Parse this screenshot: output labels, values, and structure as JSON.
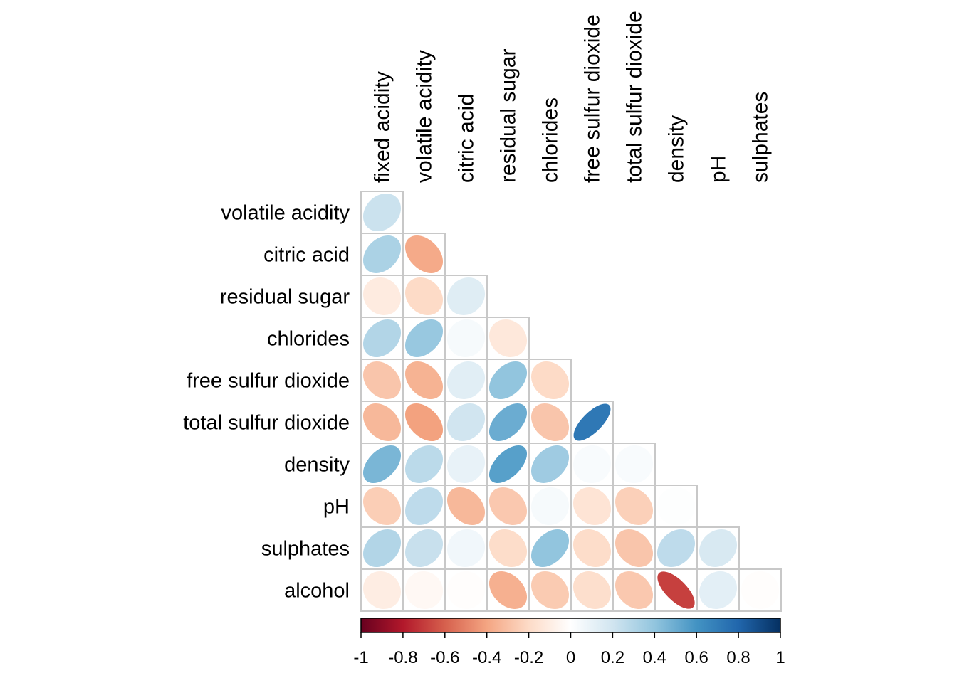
{
  "chart_data": {
    "type": "heatmap",
    "style": "correlation-ellipse-lower-triangle",
    "column_labels": [
      "fixed acidity",
      "volatile acidity",
      "citric acid",
      "residual sugar",
      "chlorides",
      "free sulfur dioxide",
      "total sulfur dioxide",
      "density",
      "pH",
      "sulphates"
    ],
    "row_labels": [
      "volatile acidity",
      "citric acid",
      "residual sugar",
      "chlorides",
      "free sulfur dioxide",
      "total sulfur dioxide",
      "density",
      "pH",
      "sulphates",
      "alcohol"
    ],
    "values": [
      [
        0.22
      ],
      [
        0.32,
        -0.38
      ],
      [
        -0.11,
        -0.2,
        0.14
      ],
      [
        0.3,
        0.38,
        0.04,
        -0.13
      ],
      [
        -0.28,
        -0.35,
        0.13,
        0.4,
        -0.2
      ],
      [
        -0.33,
        -0.41,
        0.2,
        0.5,
        -0.28,
        0.72
      ],
      [
        0.46,
        0.27,
        0.1,
        0.55,
        0.36,
        0.03,
        0.03
      ],
      [
        -0.25,
        0.26,
        -0.33,
        -0.27,
        0.04,
        -0.15,
        -0.24,
        0.01
      ],
      [
        0.3,
        0.23,
        0.06,
        -0.19,
        0.4,
        -0.19,
        -0.28,
        0.26,
        0.17
      ],
      [
        -0.1,
        -0.04,
        -0.01,
        -0.36,
        -0.26,
        -0.18,
        -0.27,
        -0.69,
        0.12,
        -0.01
      ]
    ],
    "color_scale": {
      "ticks": [
        "-1",
        "-0.8",
        "-0.6",
        "-0.4",
        "-0.2",
        "0",
        "0.2",
        "0.4",
        "0.6",
        "0.8",
        "1"
      ],
      "range": [
        -1,
        1
      ],
      "colors": [
        "#67001F",
        "#B2182B",
        "#D6604D",
        "#F4A582",
        "#FDDBC7",
        "#FFFFFF",
        "#D1E5F0",
        "#92C5DE",
        "#4393C3",
        "#2166AC",
        "#053061"
      ]
    },
    "grid": true,
    "legend": "bottom"
  }
}
